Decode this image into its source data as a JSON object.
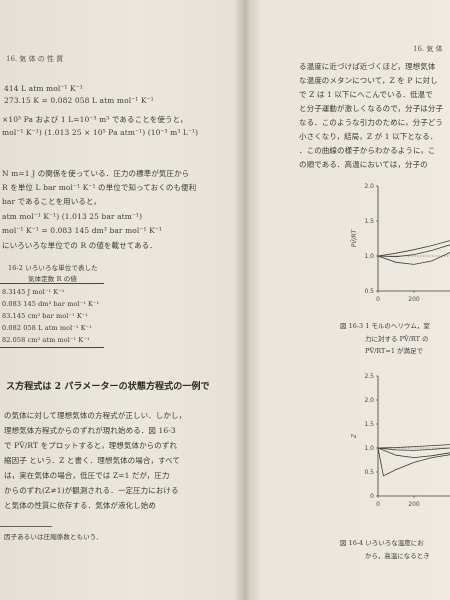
{
  "left_page": {
    "header": "16. 気 体 の 性 質",
    "lines": [
      "414 L atm mol⁻¹ K⁻¹",
      "273.15 K                = 0.082 058 L atm mol⁻¹ K⁻¹",
      "×10⁵ Pa および 1 L=10⁻³ m³ であることを使うと，",
      "mol⁻¹ K⁻¹) (1.013 25 × 10⁵ Pa atm⁻¹) (10⁻³ m³ L⁻¹)",
      "N m=1 J の関係を使っている．圧力の標準が気圧から",
      "R を単位 L bar mol⁻¹ K⁻¹ の単位で知っておくのも便利",
      "bar であることを用いると，",
      "atm mol⁻¹ K⁻¹) (1.013 25 bar atm⁻¹)",
      "mol⁻¹ K⁻¹ = 0.083 145 dm³ bar mol⁻¹ K⁻¹",
      "にいろいろな単位での R の値を載せてある．"
    ],
    "table_title_1": "16-2  いろいろな単位で表した",
    "table_title_2": "気体定数 R の値",
    "table_values": [
      "8.3145 J mol⁻¹ K⁻¹",
      "0.083 145 dm³ bar mol⁻¹ K⁻¹",
      "83.145 cm³ bar mol⁻¹ K⁻¹",
      "0.082 058 L atm mol⁻¹ K⁻¹",
      "82.058 cm³ atm mol⁻¹ K⁻¹"
    ],
    "section_heading": "ス方程式は 2 パラメーターの状態方程式の一例で",
    "body_lines": [
      "の気体に対して理想気体の方程式が正しい．しかし，",
      "理想気体方程式からのずれが現れ始める．図 16-3",
      "で PV̄/RT をプロットすると，理想気体からのずれ",
      "縮因子 という．Z と書く．理想気体の場合，すべて",
      "は，実在気体の場合，低圧では Z=1 だが，圧力",
      "からのずれ(Z≠1)が観測される．一定圧力における",
      "と気体の性質に依存する．気体が液化し始め"
    ],
    "footnote": "因子あるいは圧縮係数ともいう．"
  },
  "right_page": {
    "header": "16. 気 体",
    "lines": [
      "る温度に近づけば近づくほど，理想気体",
      "な温度のメタンについて，Z を P に対し",
      "で Z は 1 以下にへこんでいる．低温で",
      "と分子運動が激しくなるので，分子は分子",
      "なる．このような引力のために，分子どう",
      "小さくなり，結局，Z が 1 以下となる．",
      "．この曲線の様子からわかるように，こ",
      "の順である．高温においては，分子の"
    ],
    "figure3_caption_1": "図 16-3  1 モルのヘリウム，窒",
    "figure3_caption_2": "力に対する PV̄/RT の",
    "figure3_caption_3": "PV̄/RT=1 が満足で",
    "figure4_caption_1": "図 16-4  いろいろな温度にお",
    "figure4_caption_2": "から，高温になるとき"
  },
  "chart_data": [
    {
      "type": "line",
      "title": "",
      "ylabel": "PV̄/RT",
      "xlabel": "",
      "yticks": [
        "2.0",
        "1.5",
        "1.0",
        "0.5"
      ],
      "xticks": [
        "0",
        "200"
      ],
      "ylim": [
        0.5,
        2.0
      ],
      "xlim": [
        0,
        400
      ],
      "series": [
        {
          "x": [
            0,
            100,
            200,
            300,
            400
          ],
          "values": [
            1.0,
            1.04,
            1.09,
            1.15,
            1.22
          ]
        },
        {
          "x": [
            0,
            100,
            200,
            300,
            400
          ],
          "values": [
            1.0,
            0.99,
            1.02,
            1.08,
            1.16
          ]
        },
        {
          "x": [
            0,
            100,
            200,
            300,
            400
          ],
          "values": [
            1.0,
            0.91,
            0.88,
            0.93,
            1.05
          ]
        }
      ]
    },
    {
      "type": "line",
      "title": "",
      "ylabel": "Z",
      "xlabel": "",
      "yticks": [
        "2.5",
        "2.0",
        "1.5",
        "1.0",
        "0.5",
        "0"
      ],
      "xticks": [
        "0",
        "200"
      ],
      "ylim": [
        0,
        2.5
      ],
      "xlim": [
        0,
        400
      ],
      "series": [
        {
          "x": [
            0,
            100,
            200,
            300,
            400
          ],
          "values": [
            1.0,
            1.01,
            1.03,
            1.05,
            1.07
          ]
        },
        {
          "x": [
            0,
            100,
            200,
            300,
            400
          ],
          "values": [
            1.0,
            0.96,
            0.95,
            0.97,
            1.0
          ]
        },
        {
          "x": [
            0,
            100,
            200,
            300,
            400
          ],
          "values": [
            1.0,
            0.85,
            0.8,
            0.84,
            0.9
          ]
        },
        {
          "x": [
            0,
            30,
            100,
            200,
            300,
            400
          ],
          "values": [
            1.0,
            0.42,
            0.55,
            0.7,
            0.8,
            0.86
          ]
        }
      ]
    }
  ],
  "colors": {
    "ink": "#3b3a36",
    "paper": "#eeeae1",
    "gutter": "#bdb8ab"
  }
}
